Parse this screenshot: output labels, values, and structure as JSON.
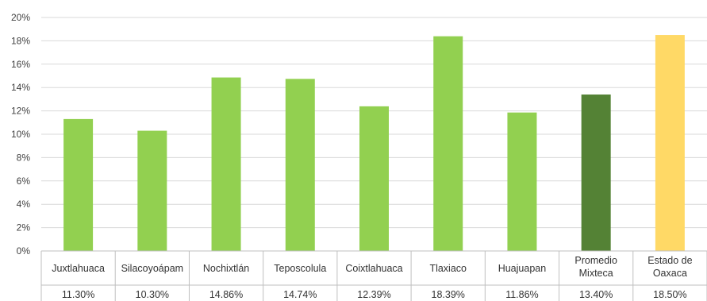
{
  "chart_data": {
    "type": "bar",
    "categories": [
      [
        "Juxtlahuaca"
      ],
      [
        "Silacoyoápam"
      ],
      [
        "Nochixtlán"
      ],
      [
        "Teposcolula"
      ],
      [
        "Coixtlahuaca"
      ],
      [
        "Tlaxiaco"
      ],
      [
        "Huajuapan"
      ],
      [
        "Promedio",
        "Mixteca"
      ],
      [
        "Estado de",
        "Oaxaca"
      ]
    ],
    "values": [
      11.3,
      10.3,
      14.86,
      14.74,
      12.39,
      18.39,
      11.86,
      13.4,
      18.5
    ],
    "value_labels": [
      "11.30%",
      "10.30%",
      "14.86%",
      "14.74%",
      "12.39%",
      "18.39%",
      "11.86%",
      "13.40%",
      "18.50%"
    ],
    "y_ticks": [
      "0%",
      "2%",
      "4%",
      "6%",
      "8%",
      "10%",
      "12%",
      "14%",
      "16%",
      "18%",
      "20%"
    ],
    "ylim": [
      0,
      20
    ],
    "grid": true,
    "data_table": true,
    "title": "",
    "xlabel": "",
    "ylabel": "",
    "colors": {
      "default": "#92D050",
      "promedio": "#548235",
      "estado": "#FFD966",
      "grid": "#d9d9d9",
      "table_border": "#bfbfbf"
    },
    "bar_colors": [
      "#92D050",
      "#92D050",
      "#92D050",
      "#92D050",
      "#92D050",
      "#92D050",
      "#92D050",
      "#548235",
      "#FFD966"
    ]
  }
}
